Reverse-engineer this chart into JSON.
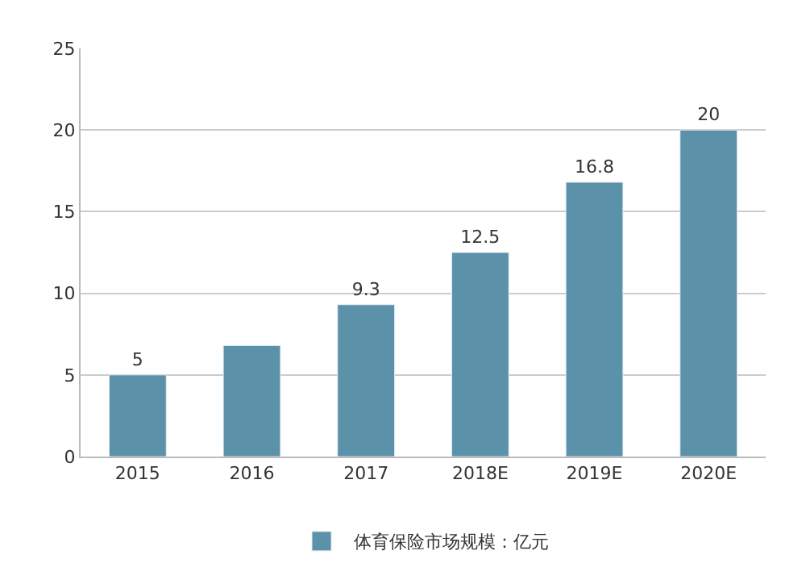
{
  "chart_data": {
    "type": "bar",
    "categories": [
      "2015",
      "2016",
      "2017",
      "2018E",
      "2019E",
      "2020E"
    ],
    "series": [
      {
        "name": "体育保险市场规模：亿元",
        "color": "#5b91a9",
        "values": [
          5,
          6.8,
          9.3,
          12.5,
          16.8,
          20
        ],
        "value_labels": [
          "5",
          null,
          "9.3",
          "12.5",
          "16.8",
          "20"
        ]
      }
    ],
    "ylim": [
      0,
      25
    ],
    "yticks": [
      0,
      5,
      10,
      15,
      20,
      25
    ],
    "grid": "y",
    "legend": "bottom"
  }
}
